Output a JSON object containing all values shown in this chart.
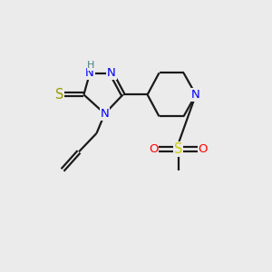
{
  "background_color": "#EBEBEB",
  "bond_color": "#1a1a1a",
  "atom_colors": {
    "N": "#0000FF",
    "S_thiol": "#999900",
    "S_sulfonyl": "#CCCC00",
    "O": "#FF0000",
    "H": "#4A8080"
  },
  "font_size": 9.5,
  "lw": 1.6
}
